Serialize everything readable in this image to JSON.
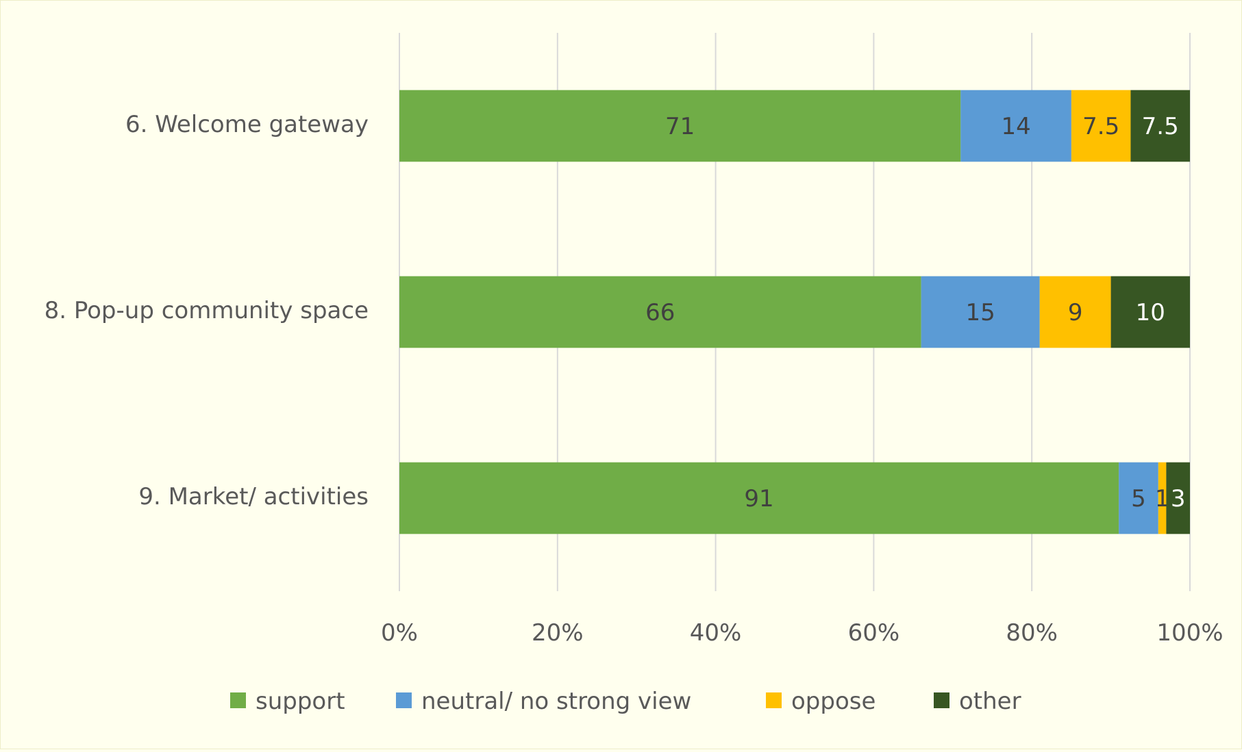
{
  "chart_data": {
    "type": "bar",
    "orientation": "horizontal",
    "stacked": "percent",
    "title": "",
    "xlabel": "",
    "ylabel": "",
    "xlim": [
      0,
      100
    ],
    "x_ticks": [
      "0%",
      "20%",
      "40%",
      "60%",
      "80%",
      "100%"
    ],
    "categories": [
      "6. Welcome gateway",
      "8. Pop-up community space",
      "9. Market/ activities"
    ],
    "series": [
      {
        "name": "support",
        "values": [
          71,
          66,
          91
        ],
        "color": "#70AD47"
      },
      {
        "name": "neutral/ no strong view",
        "values": [
          14,
          15,
          5
        ],
        "color": "#5B9BD5"
      },
      {
        "name": "oppose",
        "values": [
          7.5,
          9,
          1
        ],
        "color": "#FFC000"
      },
      {
        "name": "other",
        "values": [
          7.5,
          10,
          3
        ],
        "color": "#375623"
      }
    ],
    "grid": true,
    "legend": "bottom",
    "data_labels": true
  }
}
